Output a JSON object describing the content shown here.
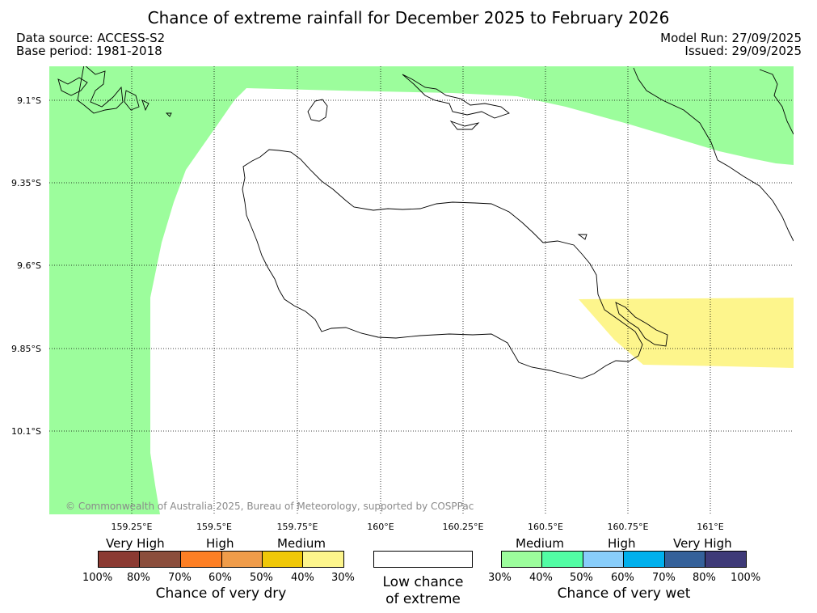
{
  "title": "Chance of extreme rainfall for December 2025 to February 2026",
  "meta": {
    "data_source": "Data source: ACCESS-S2",
    "base_period": "Base period: 1981-2018",
    "model_run": "Model Run: 27/09/2025",
    "issued": "Issued: 29/09/2025"
  },
  "map": {
    "lat_labels": [
      "9.1°S",
      "9.35°S",
      "9.6°S",
      "9.85°S",
      "10.1°S"
    ],
    "lon_labels": [
      "159.25°E",
      "159.5°E",
      "159.75°E",
      "160°E",
      "160.25°E",
      "160.5°E",
      "160.75°E",
      "161°E"
    ],
    "copyright": "© Commonwealth of Australia 2025, Bureau of Meteorology, supported by COSPPac",
    "colors": {
      "wet_medium": "#9cfd9c",
      "dry_medium": "#fdf58c",
      "coast": "#000000",
      "grid": "#000000"
    }
  },
  "legend": {
    "dry": {
      "categories": [
        "Very High",
        "High",
        "Medium"
      ],
      "colors": [
        "#8b3a32",
        "#8b4e3c",
        "#fd7f24",
        "#ef9c4a",
        "#f0c808",
        "#fdf58c"
      ],
      "ticks": [
        "100%",
        "80%",
        "70%",
        "60%",
        "50%",
        "40%",
        "30%"
      ],
      "caption": "Chance of very dry"
    },
    "neutral": {
      "caption_line1": "Low chance",
      "caption_line2": "of extreme"
    },
    "wet": {
      "categories": [
        "Medium",
        "High",
        "Very High"
      ],
      "colors": [
        "#9cfd9c",
        "#52fda4",
        "#88cdfa",
        "#00b0ed",
        "#35619a",
        "#3e3a78"
      ],
      "ticks": [
        "30%",
        "40%",
        "50%",
        "60%",
        "70%",
        "80%",
        "100%"
      ],
      "caption": "Chance of very wet"
    }
  }
}
